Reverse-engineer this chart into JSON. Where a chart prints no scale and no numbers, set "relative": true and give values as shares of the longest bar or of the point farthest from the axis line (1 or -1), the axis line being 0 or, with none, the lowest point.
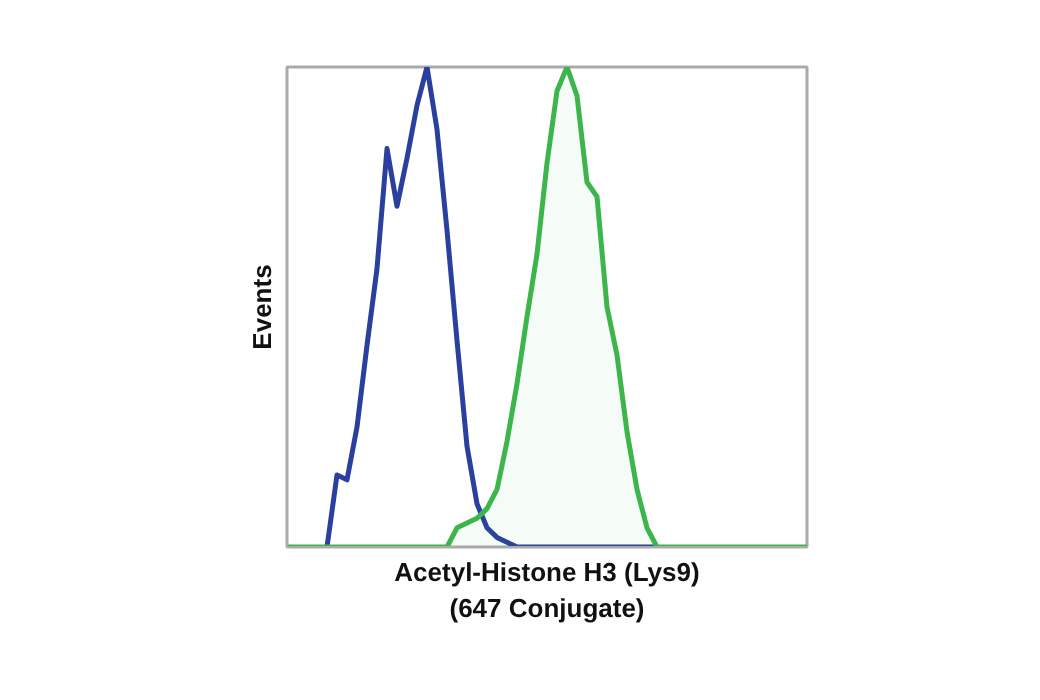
{
  "chart_data": {
    "type": "line",
    "relative": true,
    "xlabel": "Acetyl-Histone H3 (Lys9)\n(647 Conjugate)",
    "ylabel": "Events",
    "categories": [
      null,
      null,
      null,
      null,
      null,
      null,
      null,
      null,
      null,
      null,
      null,
      null,
      null,
      null,
      null,
      null,
      null,
      null,
      null,
      null,
      null,
      null,
      null,
      null,
      null,
      null,
      null,
      null,
      null,
      null,
      null,
      null,
      null,
      null,
      null,
      null,
      null,
      null,
      null,
      null,
      null,
      null,
      null,
      null,
      null,
      null,
      null,
      null,
      null,
      null,
      null,
      null,
      null
    ],
    "series": [
      {
        "color": "#2b3f9e",
        "values": [
          null,
          null,
          null,
          null,
          0,
          0.15,
          0.14,
          0.25,
          0.42,
          0.58,
          0.83,
          0.71,
          0.81,
          0.92,
          1.0,
          0.87,
          0.66,
          0.43,
          0.21,
          0.09,
          0.04,
          0.02,
          0.01,
          0,
          0,
          0,
          0,
          0,
          0,
          0,
          0,
          0,
          0,
          0,
          0,
          0,
          0,
          0,
          null,
          null,
          null,
          null,
          null,
          null,
          null,
          null,
          null,
          null,
          null,
          null,
          null,
          null,
          null
        ]
      },
      {
        "type": "area",
        "color": "#3cb54a",
        "values": [
          0,
          0,
          0,
          0,
          0,
          0,
          0,
          0,
          0,
          0,
          0,
          0,
          0,
          0,
          0,
          0,
          0,
          0.04,
          0.05,
          0.06,
          0.08,
          0.12,
          0.22,
          0.34,
          0.48,
          0.61,
          0.8,
          0.95,
          1.0,
          0.94,
          0.76,
          0.73,
          0.5,
          0.4,
          0.24,
          0.12,
          0.04,
          0,
          0,
          0,
          0,
          0,
          0,
          0,
          0,
          0,
          0,
          0,
          0,
          0,
          0,
          0,
          0
        ]
      }
    ]
  }
}
